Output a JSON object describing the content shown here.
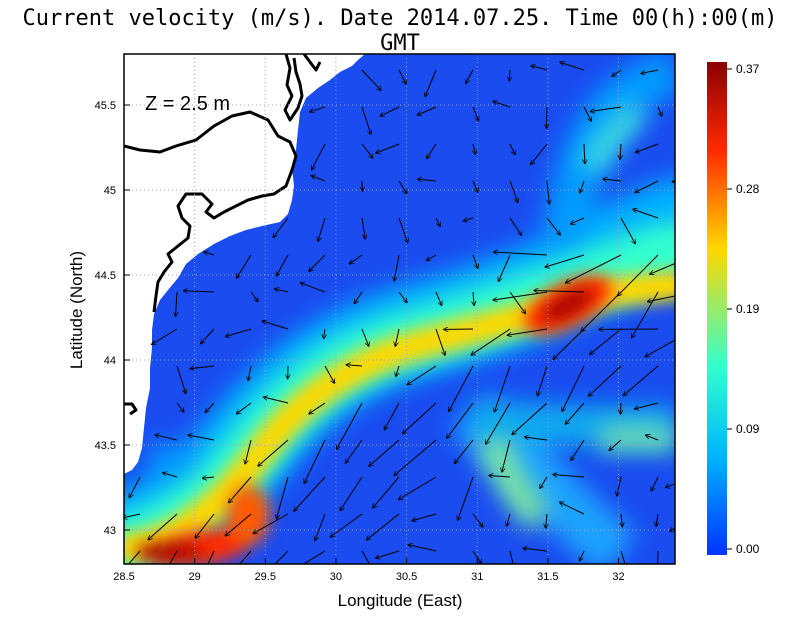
{
  "title": "Current velocity (m/s). Date 2014.07.25. Time 00(h):00(m) GMT",
  "chart_data": {
    "type": "heatmap",
    "title": "Current velocity (m/s). Date 2014.07.25. Time 00(h):00(m) GMT",
    "xlabel": "Longitude (East)",
    "ylabel": "Latitude (North)",
    "annotation": "Z = 2.5 m",
    "xlim": [
      28.5,
      32.4
    ],
    "ylim": [
      42.8,
      45.8
    ],
    "xticks": [
      "28.5",
      "29",
      "29.5",
      "30",
      "30.5",
      "31",
      "31.5",
      "32"
    ],
    "yticks": [
      "43",
      "43.5",
      "44",
      "44.5",
      "45",
      "45.5"
    ],
    "grid": true,
    "colorbar": {
      "min": 0.0,
      "max": 0.37,
      "ticks": [
        "0.37",
        "0.28",
        "0.19",
        "0.09",
        "0.00"
      ],
      "colors": [
        "#8b0000",
        "#ff2a00",
        "#ffd800",
        "#30ffcf",
        "#00b4ff",
        "#0033ff"
      ]
    },
    "colors": {
      "background": "#1a4cf0",
      "land": "#ffffff",
      "coastline": "#000000"
    },
    "jet_path": [
      {
        "lon": 28.6,
        "lat": 42.85,
        "speed": 0.33
      },
      {
        "lon": 29.2,
        "lat": 42.95,
        "speed": 0.32
      },
      {
        "lon": 29.4,
        "lat": 43.3,
        "speed": 0.25
      },
      {
        "lon": 29.7,
        "lat": 43.6,
        "speed": 0.2
      },
      {
        "lon": 30.2,
        "lat": 43.95,
        "speed": 0.18
      },
      {
        "lon": 30.9,
        "lat": 44.15,
        "speed": 0.2
      },
      {
        "lon": 31.5,
        "lat": 44.3,
        "speed": 0.33
      },
      {
        "lon": 31.8,
        "lat": 44.45,
        "speed": 0.28
      },
      {
        "lon": 32.3,
        "lat": 44.5,
        "speed": 0.2
      }
    ]
  }
}
